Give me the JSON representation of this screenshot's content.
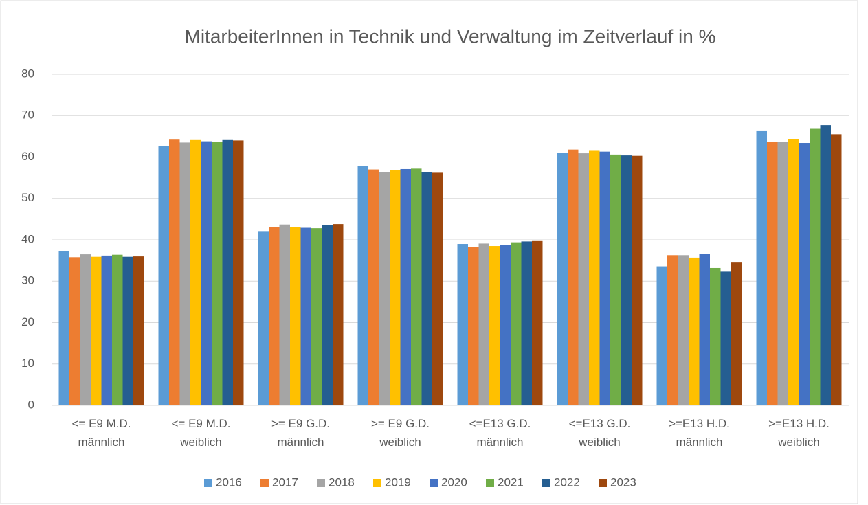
{
  "chart_data": {
    "type": "bar",
    "title": "MitarbeiterInnen in Technik und Verwaltung im Zeitverlauf in %",
    "categories": [
      "<= E9 M.D.\nmännlich",
      "<= E9 M.D.\nweiblich",
      ">= E9 G.D.\nmännlich",
      ">= E9 G.D.\nweiblich",
      "<=E13 G.D.\nmännlich",
      "<=E13 G.D.\nweiblich",
      ">=E13 H.D.\nmännlich",
      ">=E13 H.D.\nweiblich"
    ],
    "series": [
      {
        "name": "2016",
        "color": "#5b9bd5",
        "values": [
          37.3,
          62.7,
          42.1,
          57.9,
          39.0,
          61.0,
          33.6,
          66.4
        ]
      },
      {
        "name": "2017",
        "color": "#ed7d31",
        "values": [
          35.8,
          64.2,
          43.0,
          57.0,
          38.2,
          61.8,
          36.3,
          63.7
        ]
      },
      {
        "name": "2018",
        "color": "#a5a5a5",
        "values": [
          36.5,
          63.5,
          43.7,
          56.3,
          39.1,
          60.9,
          36.3,
          63.7
        ]
      },
      {
        "name": "2019",
        "color": "#ffc000",
        "values": [
          35.9,
          64.1,
          43.1,
          56.9,
          38.5,
          61.5,
          35.7,
          64.3
        ]
      },
      {
        "name": "2020",
        "color": "#4472c4",
        "values": [
          36.2,
          63.8,
          42.9,
          57.1,
          38.7,
          61.3,
          36.6,
          63.4
        ]
      },
      {
        "name": "2021",
        "color": "#70ad47",
        "values": [
          36.4,
          63.6,
          42.8,
          57.2,
          39.4,
          60.6,
          33.2,
          66.8
        ]
      },
      {
        "name": "2022",
        "color": "#255e91",
        "values": [
          35.9,
          64.1,
          43.6,
          56.4,
          39.6,
          60.4,
          32.3,
          67.7
        ]
      },
      {
        "name": "2023",
        "color": "#9e480e",
        "values": [
          36.0,
          64.0,
          43.8,
          56.2,
          39.7,
          60.3,
          34.5,
          65.5
        ]
      }
    ],
    "ylim": [
      0,
      80
    ],
    "yticks": [
      0,
      10,
      20,
      30,
      40,
      50,
      60,
      70,
      80
    ],
    "grid": true,
    "legend": "bottom"
  }
}
